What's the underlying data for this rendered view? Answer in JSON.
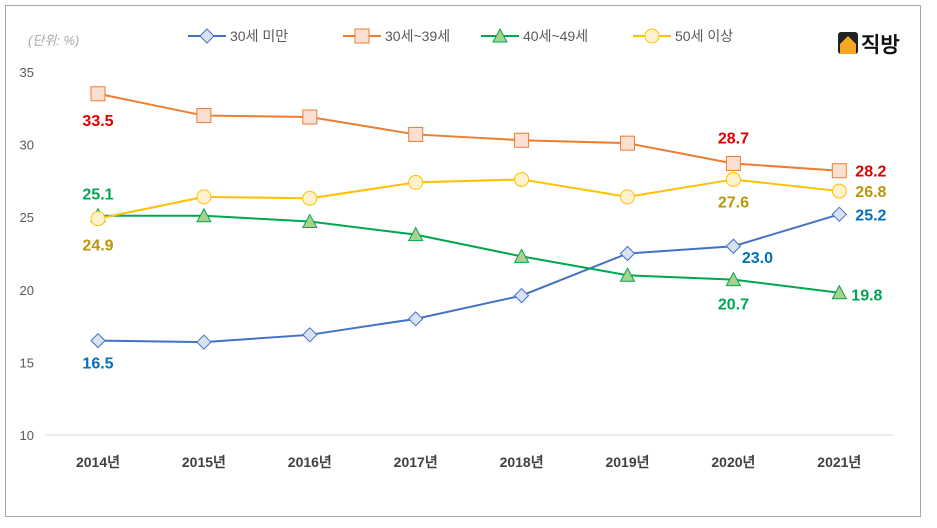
{
  "chart_data": {
    "type": "line",
    "unit_label": "(단위: %)",
    "categories": [
      "2014년",
      "2015년",
      "2016년",
      "2017년",
      "2018년",
      "2019년",
      "2020년",
      "2021년"
    ],
    "ylim": [
      10,
      35
    ],
    "yticks": [
      "10",
      "15",
      "20",
      "25",
      "30",
      "35"
    ],
    "grid": false,
    "legend": "top",
    "series": [
      {
        "name": "30세 미만",
        "color": "#4472c4",
        "marker": "diamond",
        "fill": "#d9e2f3",
        "label_color": "#0070c0",
        "values": [
          16.5,
          16.4,
          16.9,
          18.0,
          19.6,
          22.5,
          23.0,
          25.2
        ],
        "labels": {
          "0": "16.5",
          "6": "23.0",
          "7": "25.2"
        }
      },
      {
        "name": "30세~39세",
        "color": "#ed7d31",
        "marker": "square",
        "fill": "#fbe0d2",
        "label_color": "#e00000",
        "values": [
          33.5,
          32.0,
          31.9,
          30.7,
          30.3,
          30.1,
          28.7,
          28.2
        ],
        "labels": {
          "0": "33.5",
          "6": "28.7",
          "7": "28.2"
        }
      },
      {
        "name": "40세~49세",
        "color": "#00a650",
        "marker": "triangle",
        "fill": "#a9d18e",
        "label_color": "#00a650",
        "values": [
          25.1,
          25.1,
          24.7,
          23.8,
          22.3,
          21.0,
          20.7,
          19.8
        ],
        "labels": {
          "0": "25.1",
          "6": "20.7",
          "7": "19.8"
        }
      },
      {
        "name": "50세 이상",
        "color": "#ffc000",
        "marker": "circle",
        "fill": "#fff2cc",
        "label_color": "#b8960b",
        "values": [
          24.9,
          26.4,
          26.3,
          27.4,
          27.6,
          26.4,
          27.6,
          26.8
        ],
        "labels": {
          "0": "24.9",
          "6": "27.6",
          "7": "26.8"
        }
      }
    ]
  },
  "logo": {
    "text": "직방"
  }
}
